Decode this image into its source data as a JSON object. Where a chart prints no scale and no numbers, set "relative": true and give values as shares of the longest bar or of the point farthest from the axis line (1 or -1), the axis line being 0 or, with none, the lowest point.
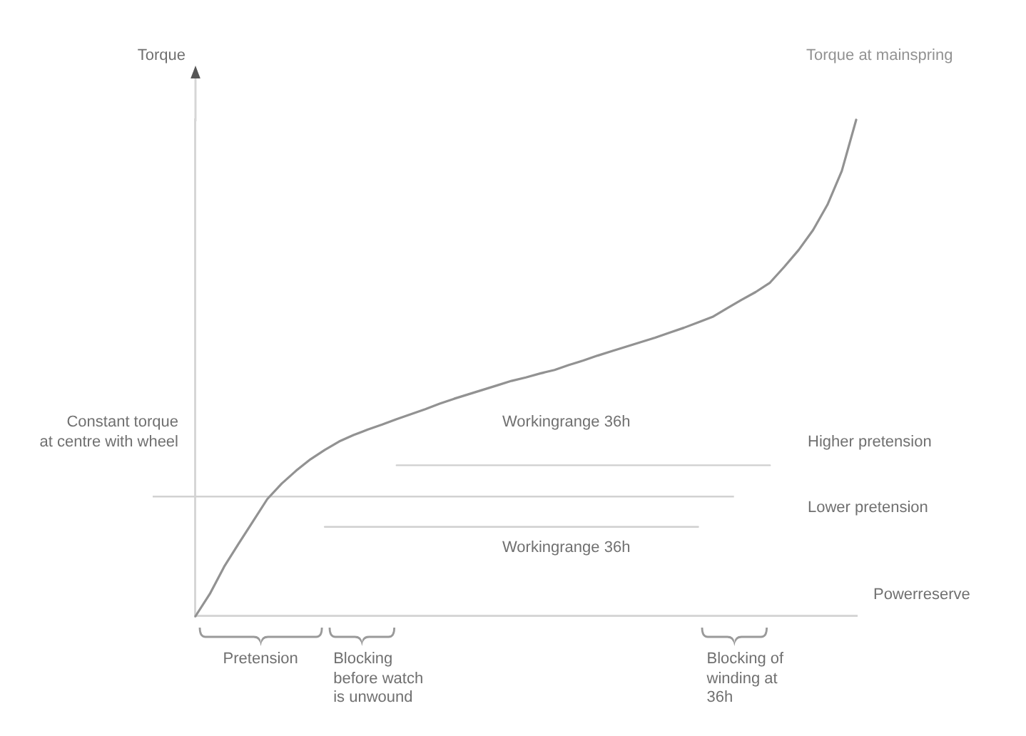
{
  "chart_data": {
    "type": "line",
    "relative": true,
    "marker": "none",
    "ylabel": "Torque",
    "xlabel": "Powerreserve",
    "categories": [
      null,
      null,
      null,
      null,
      null,
      null,
      null,
      null,
      null,
      null,
      null,
      null,
      null,
      null,
      null,
      null,
      null,
      null,
      null,
      null,
      null,
      null,
      null,
      null,
      null,
      null,
      null,
      null,
      null,
      null,
      null,
      null,
      null,
      null,
      null,
      null,
      null,
      null,
      null,
      null,
      null,
      null,
      null,
      null,
      null,
      null,
      null
    ],
    "series": [
      {
        "name": "Torque at mainspring",
        "color": "#929292",
        "values": [
          0,
          0.045,
          0.1,
          0.146,
          0.191,
          0.236,
          0.267,
          0.293,
          0.316,
          0.335,
          0.352,
          0.365,
          0.376,
          0.386,
          0.397,
          0.407,
          0.417,
          0.428,
          0.438,
          0.447,
          0.456,
          0.465,
          0.474,
          0.481,
          0.489,
          0.496,
          0.506,
          0.515,
          0.525,
          0.534,
          0.543,
          0.552,
          0.561,
          0.571,
          0.581,
          0.592,
          0.603,
          0.62,
          0.637,
          0.653,
          0.672,
          0.704,
          0.738,
          0.778,
          0.829,
          0.897,
          1
        ]
      },
      {
        "color": "#cfcfcf",
        "values": [
          null,
          null,
          null,
          null,
          null,
          null,
          null,
          null,
          null,
          null,
          null,
          null,
          null,
          null,
          0.304,
          0.304,
          0.304,
          0.304,
          0.304,
          0.304,
          0.304,
          0.304,
          0.304,
          0.304,
          0.304,
          0.304,
          0.304,
          0.304,
          0.304,
          0.304,
          0.304,
          0.304,
          0.304,
          0.304,
          0.304,
          0.304,
          0.304,
          0.304,
          0.304,
          0.304,
          0.304,
          null,
          null,
          null,
          null,
          null,
          null
        ]
      },
      {
        "color": "#cfcfcf",
        "values": [
          null,
          null,
          null,
          null,
          null,
          null,
          null,
          null,
          null,
          0.18,
          0.18,
          0.18,
          0.18,
          0.18,
          0.18,
          0.18,
          0.18,
          0.18,
          0.18,
          0.18,
          0.18,
          0.18,
          0.18,
          0.18,
          0.18,
          0.18,
          0.18,
          0.18,
          0.18,
          0.18,
          0.18,
          0.18,
          0.18,
          0.18,
          0.18,
          0.18,
          null,
          null,
          null,
          null,
          null,
          null,
          null,
          null,
          null,
          null,
          null
        ]
      }
    ],
    "ref_lines": [
      {
        "axis": "y",
        "value": 0.241,
        "label": "Constant torque\nat centre with wheel",
        "color": "#d2d2d2"
      }
    ],
    "annotations": [
      "Workingrange 36h",
      "Workingrange 36h",
      "Higher pretension",
      "Lower pretension",
      "Pretension",
      "Blocking before watch is unwound",
      "Blocking of winding at 36h"
    ]
  }
}
